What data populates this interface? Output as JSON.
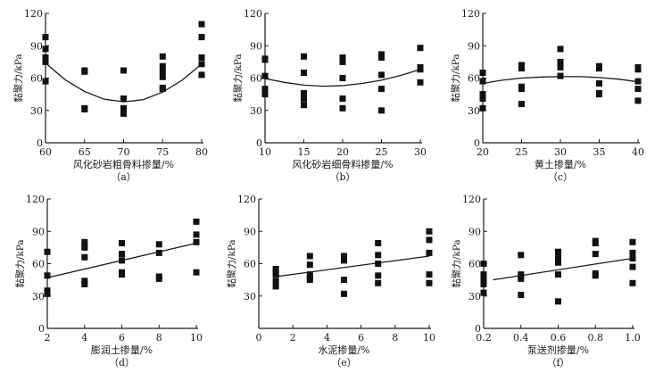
{
  "colors": {
    "ink": "#1a1a1a",
    "marker": "#111111",
    "background": "#ffffff"
  },
  "chart_data": [
    {
      "id": "a",
      "type": "scatter",
      "caption": "（a）",
      "xlabel": "风化砂岩粗骨料掺量/%",
      "ylabel": "黏聚力/kPa",
      "xlim": [
        60,
        80
      ],
      "ylim": [
        0,
        120
      ],
      "xticks": [
        60,
        65,
        70,
        75,
        80
      ],
      "xtick_labels": [
        "60",
        "65",
        "70",
        "75",
        "80"
      ],
      "yticks": [
        0,
        30,
        60,
        90,
        120
      ],
      "ytick_labels": [
        "0",
        "30",
        "60",
        "90",
        "120"
      ],
      "points": [
        [
          60,
          98
        ],
        [
          60,
          87
        ],
        [
          60,
          79
        ],
        [
          60,
          77
        ],
        [
          60,
          75
        ],
        [
          60,
          57
        ],
        [
          65,
          67
        ],
        [
          65,
          66
        ],
        [
          65,
          32
        ],
        [
          65,
          31
        ],
        [
          70,
          67
        ],
        [
          70,
          41
        ],
        [
          70,
          32
        ],
        [
          70,
          30
        ],
        [
          70,
          28
        ],
        [
          70,
          27
        ],
        [
          75,
          80
        ],
        [
          75,
          71
        ],
        [
          75,
          66
        ],
        [
          75,
          61
        ],
        [
          75,
          51
        ],
        [
          75,
          50
        ],
        [
          80,
          110
        ],
        [
          80,
          98
        ],
        [
          80,
          79
        ],
        [
          80,
          73
        ],
        [
          80,
          63
        ]
      ],
      "fit": {
        "kind": "quadratic",
        "x": [
          60,
          62.5,
          65,
          67.5,
          70,
          72.5,
          75,
          77.5,
          80
        ],
        "y": [
          74,
          58.5,
          47.5,
          40.5,
          38,
          40,
          47,
          58,
          73
        ]
      }
    },
    {
      "id": "b",
      "type": "scatter",
      "caption": "（b）",
      "xlabel": "风化砂岩细骨料掺量/%",
      "ylabel": "黏聚力/kPa",
      "xlim": [
        10,
        30
      ],
      "ylim": [
        0,
        120
      ],
      "xticks": [
        10,
        15,
        20,
        25,
        30
      ],
      "xtick_labels": [
        "10",
        "15",
        "20",
        "25",
        "30"
      ],
      "yticks": [
        0,
        30,
        60,
        90,
        120
      ],
      "ytick_labels": [
        "0",
        "30",
        "60",
        "90",
        "120"
      ],
      "points": [
        [
          10,
          78
        ],
        [
          10,
          77
        ],
        [
          10,
          62
        ],
        [
          10,
          50
        ],
        [
          10,
          45
        ],
        [
          15,
          80
        ],
        [
          15,
          65
        ],
        [
          15,
          46
        ],
        [
          15,
          41
        ],
        [
          15,
          35
        ],
        [
          20,
          79
        ],
        [
          20,
          77
        ],
        [
          20,
          75
        ],
        [
          20,
          60
        ],
        [
          20,
          41
        ],
        [
          20,
          32
        ],
        [
          25,
          82
        ],
        [
          25,
          79
        ],
        [
          25,
          63
        ],
        [
          25,
          50
        ],
        [
          25,
          30
        ],
        [
          30,
          88
        ],
        [
          30,
          70
        ],
        [
          30,
          68
        ],
        [
          30,
          56
        ]
      ],
      "fit": {
        "kind": "quadratic",
        "x": [
          10,
          12.5,
          15,
          17.5,
          20,
          22.5,
          25,
          27.5,
          30
        ],
        "y": [
          59.5,
          56,
          53.5,
          52.5,
          53,
          55,
          58,
          62.5,
          68
        ]
      }
    },
    {
      "id": "c",
      "type": "scatter",
      "caption": "（c）",
      "xlabel": "黄土掺量/%",
      "ylabel": "黏聚力/kPa",
      "xlim": [
        20,
        40
      ],
      "ylim": [
        0,
        120
      ],
      "xticks": [
        20,
        25,
        30,
        35,
        40
      ],
      "xtick_labels": [
        "20",
        "25",
        "30",
        "35",
        "40"
      ],
      "yticks": [
        0,
        30,
        60,
        90,
        120
      ],
      "ytick_labels": [
        "0",
        "30",
        "60",
        "90",
        "120"
      ],
      "points": [
        [
          20,
          65
        ],
        [
          20,
          57
        ],
        [
          20,
          45
        ],
        [
          20,
          43
        ],
        [
          20,
          41
        ],
        [
          20,
          32
        ],
        [
          25,
          72
        ],
        [
          25,
          69
        ],
        [
          25,
          52
        ],
        [
          25,
          50
        ],
        [
          25,
          36
        ],
        [
          30,
          87
        ],
        [
          30,
          75
        ],
        [
          30,
          70
        ],
        [
          30,
          62
        ],
        [
          35,
          71
        ],
        [
          35,
          69
        ],
        [
          35,
          55
        ],
        [
          35,
          46
        ],
        [
          35,
          45
        ],
        [
          40,
          70
        ],
        [
          40,
          68
        ],
        [
          40,
          57
        ],
        [
          40,
          50
        ],
        [
          40,
          39
        ]
      ],
      "fit": {
        "kind": "quadratic",
        "x": [
          20,
          22.5,
          25,
          27.5,
          30,
          32.5,
          35,
          37.5,
          40
        ],
        "y": [
          55,
          58,
          60,
          61,
          61.3,
          61.3,
          60.5,
          59,
          56.5
        ]
      }
    },
    {
      "id": "d",
      "type": "scatter",
      "caption": "（d）",
      "xlabel": "膨润土掺量/%",
      "ylabel": "黏聚力/kPa",
      "xlim": [
        2,
        10
      ],
      "ylim": [
        0,
        120
      ],
      "xticks": [
        2,
        4,
        6,
        8,
        10
      ],
      "xtick_labels": [
        "2",
        "4",
        "6",
        "8",
        "10"
      ],
      "yticks": [
        0,
        30,
        60,
        90,
        120
      ],
      "ytick_labels": [
        "0",
        "30",
        "60",
        "90",
        "120"
      ],
      "points": [
        [
          2,
          71
        ],
        [
          2,
          49
        ],
        [
          2,
          35
        ],
        [
          2,
          32
        ],
        [
          4,
          80
        ],
        [
          4,
          77
        ],
        [
          4,
          75
        ],
        [
          4,
          66
        ],
        [
          4,
          44
        ],
        [
          4,
          41
        ],
        [
          6,
          79
        ],
        [
          6,
          69
        ],
        [
          6,
          63
        ],
        [
          6,
          52
        ],
        [
          6,
          50
        ],
        [
          8,
          78
        ],
        [
          8,
          70
        ],
        [
          8,
          48
        ],
        [
          8,
          46
        ],
        [
          10,
          99
        ],
        [
          10,
          87
        ],
        [
          10,
          80
        ],
        [
          10,
          52
        ]
      ],
      "fit": {
        "kind": "linear",
        "x": [
          2,
          10
        ],
        "y": [
          47,
          79
        ]
      }
    },
    {
      "id": "e",
      "type": "scatter",
      "caption": "（e）",
      "xlabel": "水泥掺量/%",
      "ylabel": "黏聚力/kPa",
      "xlim": [
        0,
        10
      ],
      "ylim": [
        0,
        120
      ],
      "xticks": [
        0,
        2,
        4,
        6,
        8,
        10
      ],
      "xtick_labels": [
        "0",
        "2",
        "4",
        "6",
        "8",
        "10"
      ],
      "yticks": [
        30,
        60,
        90,
        120
      ],
      "ytick_labels": [
        "30",
        "60",
        "90",
        "120"
      ],
      "points": [
        [
          1,
          55
        ],
        [
          1,
          52
        ],
        [
          1,
          50
        ],
        [
          1,
          44
        ],
        [
          1,
          39
        ],
        [
          3,
          67
        ],
        [
          3,
          59
        ],
        [
          3,
          50
        ],
        [
          3,
          47
        ],
        [
          3,
          45
        ],
        [
          5,
          67
        ],
        [
          5,
          65
        ],
        [
          5,
          63
        ],
        [
          5,
          45
        ],
        [
          5,
          32
        ],
        [
          7,
          79
        ],
        [
          7,
          68
        ],
        [
          7,
          60
        ],
        [
          7,
          49
        ],
        [
          7,
          42
        ],
        [
          10,
          90
        ],
        [
          10,
          82
        ],
        [
          10,
          70
        ],
        [
          10,
          50
        ],
        [
          10,
          42
        ]
      ],
      "fit": {
        "kind": "linear",
        "x": [
          1,
          10
        ],
        "y": [
          48,
          67
        ]
      }
    },
    {
      "id": "f",
      "type": "scatter",
      "caption": "（f）",
      "xlabel": "泵送剂掺量/%",
      "ylabel": "黏聚力/kPa",
      "xlim": [
        0.2,
        1.0
      ],
      "ylim": [
        0,
        120
      ],
      "xticks": [
        0.2,
        0.4,
        0.6,
        0.8,
        1.0
      ],
      "xtick_labels": [
        "0.2",
        "0.4",
        "0.6",
        "0.8",
        "1.0"
      ],
      "yticks": [
        0,
        30,
        60,
        90,
        120
      ],
      "ytick_labels": [
        "0",
        "30",
        "60",
        "90",
        "120"
      ],
      "points": [
        [
          0.2,
          60
        ],
        [
          0.2,
          50
        ],
        [
          0.2,
          48
        ],
        [
          0.2,
          46
        ],
        [
          0.2,
          41
        ],
        [
          0.2,
          33
        ],
        [
          0.4,
          68
        ],
        [
          0.4,
          50
        ],
        [
          0.4,
          48
        ],
        [
          0.4,
          46
        ],
        [
          0.4,
          31
        ],
        [
          0.6,
          71
        ],
        [
          0.6,
          66
        ],
        [
          0.6,
          61
        ],
        [
          0.6,
          50
        ],
        [
          0.6,
          25
        ],
        [
          0.8,
          81
        ],
        [
          0.8,
          79
        ],
        [
          0.8,
          69
        ],
        [
          0.8,
          51
        ],
        [
          0.8,
          49
        ],
        [
          1.0,
          80
        ],
        [
          1.0,
          70
        ],
        [
          1.0,
          67
        ],
        [
          1.0,
          65
        ],
        [
          1.0,
          57
        ],
        [
          1.0,
          42
        ]
      ],
      "fit": {
        "kind": "linear",
        "x": [
          0.25,
          1.0
        ],
        "y": [
          45,
          65
        ]
      }
    }
  ],
  "zero_labels": {
    "e": "0"
  }
}
